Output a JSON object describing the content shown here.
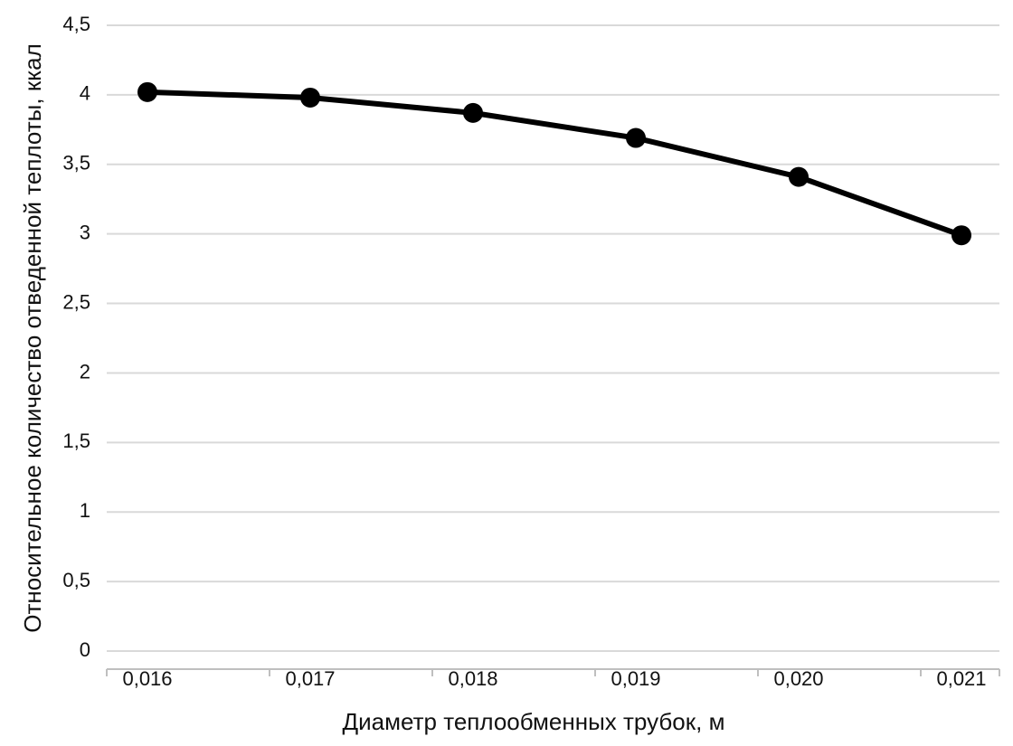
{
  "chart_data": {
    "type": "line",
    "x_label": "Диаметр теплообменных трубок, м",
    "y_label": "Относительное количество отведенной теплоты, ккал",
    "categories": [
      "0,016",
      "0,017",
      "0,018",
      "0,019",
      "0,020",
      "0,021"
    ],
    "values": [
      4.02,
      3.98,
      3.87,
      3.69,
      3.41,
      2.99
    ],
    "color": "#000000",
    "ylim": [
      0,
      4.5
    ],
    "yticks": [
      0,
      {
        "value": 0.5,
        "label": "0,5"
      },
      1,
      {
        "value": 1.5,
        "label": "1,5"
      },
      2,
      {
        "value": 2.5,
        "label": "2,5"
      },
      3,
      {
        "value": 3.5,
        "label": "3,5"
      },
      4,
      {
        "value": 4.5,
        "label": "4,5"
      }
    ],
    "grid": true
  }
}
